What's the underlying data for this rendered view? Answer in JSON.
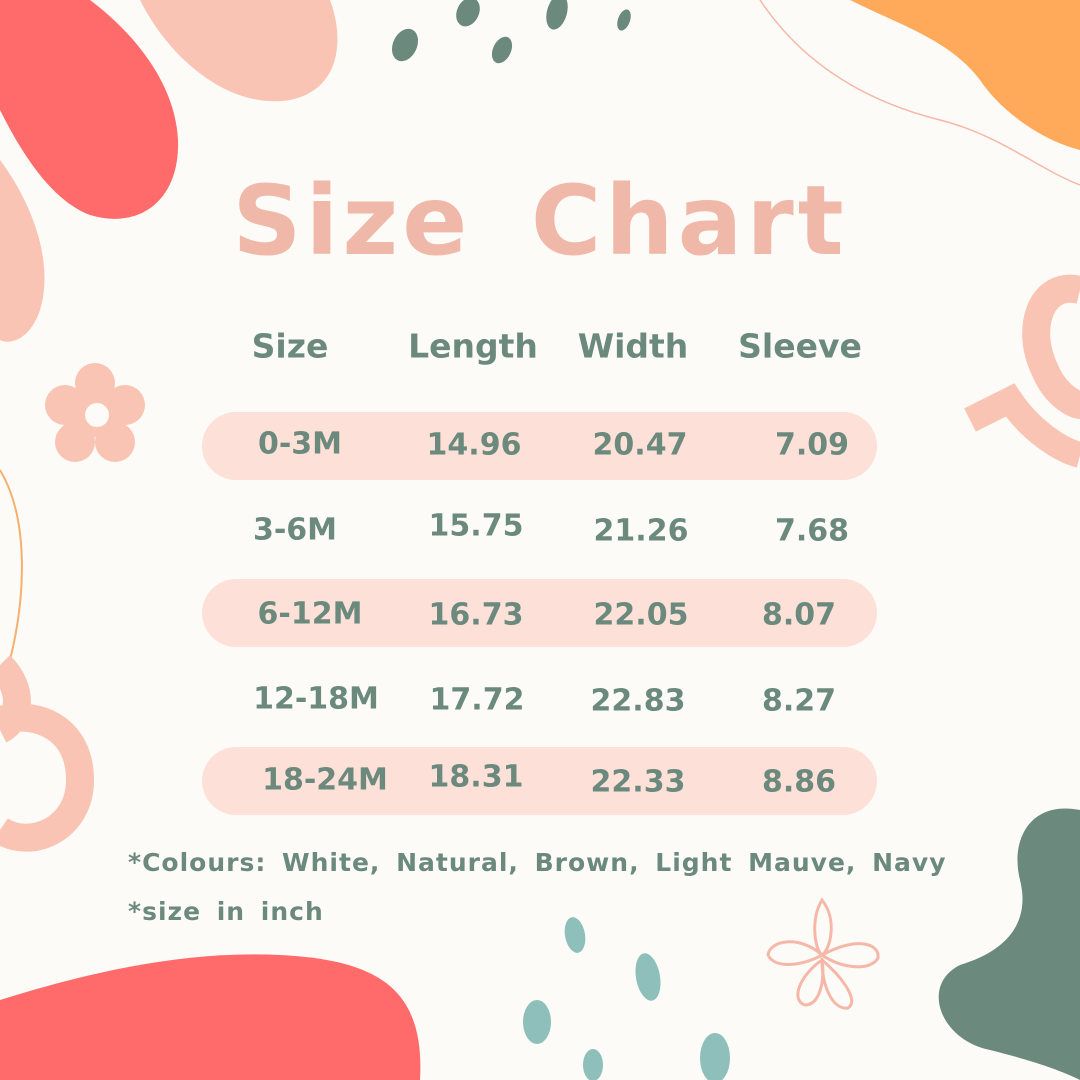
{
  "title": "Size Chart",
  "table": {
    "headers": [
      "Size",
      "Length",
      "Width",
      "Sleeve"
    ],
    "rows": [
      [
        "0-3M",
        "14.96",
        "20.47",
        "7.09"
      ],
      [
        "3-6M",
        "15.75",
        "21.26",
        "7.68"
      ],
      [
        "6-12M",
        "16.73",
        "22.05",
        "8.07"
      ],
      [
        "12-18M",
        "17.72",
        "22.83",
        "8.27"
      ],
      [
        "18-24M",
        "18.31",
        "22.33",
        "8.86"
      ]
    ]
  },
  "notes": {
    "colours": "*Colours: White, Natural, Brown, Light Mauve, Navy",
    "unit": "*size in inch"
  },
  "colors": {
    "background": "#fdfbf7",
    "title": "#f0b8a8",
    "text": "#6b8a7d",
    "row_band": "#fde0d8",
    "coral": "#ff6b6b",
    "peach": "#f9c4b4",
    "orange": "#ffa95a",
    "sage": "#6b8a7d",
    "teal": "#8fbfba"
  }
}
